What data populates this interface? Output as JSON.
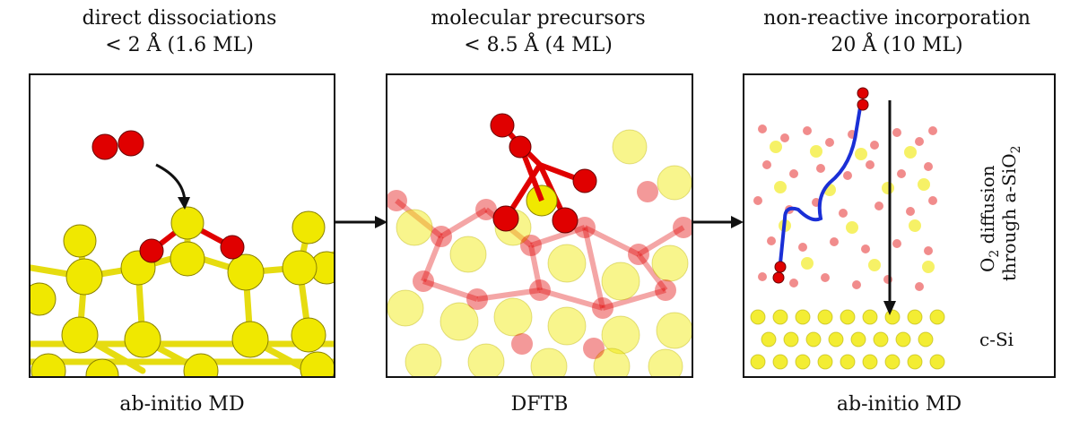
{
  "panels": [
    {
      "title_line1": "direct dissociations",
      "title_line2": "< 2 Å (1.6 ML)",
      "caption": "ab-initio MD"
    },
    {
      "title_line1": "molecular precursors",
      "title_line2": "< 8.5 Å (4 ML)",
      "caption": "DFTB"
    },
    {
      "title_line1": "non-reactive incorporation",
      "title_line2": "20 Å (10 ML)",
      "caption": "ab-initio MD",
      "side_label_line1_prefix": "O",
      "side_label_line1_sub": "2",
      "side_label_line1_suffix": " diffusion",
      "side_label_line2_prefix": "through a-SiO",
      "side_label_line2_sub": "2",
      "region_label": "c-Si"
    }
  ],
  "colors": {
    "silicon": "#f0e800",
    "oxygen": "#e00000",
    "bond_si": "#e6dc10",
    "path": "#1a2fd6",
    "frame": "#111111"
  }
}
